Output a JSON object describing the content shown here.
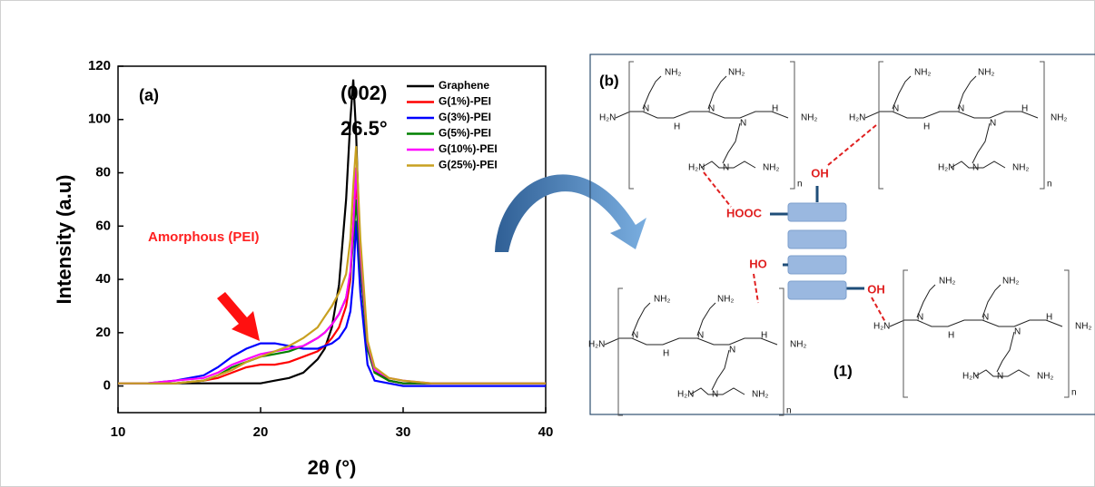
{
  "chart_data": {
    "type": "line",
    "panel_label": "(a)",
    "peak_label": "(002)",
    "peak_position": "26.5°",
    "annotation": "Amorphous (PEI)",
    "xlabel": "2θ (°)",
    "ylabel": "Intensity (a.u)",
    "xlim": [
      10,
      40
    ],
    "xticks": [
      10,
      20,
      30,
      40
    ],
    "ylim": [
      -10,
      120
    ],
    "yticks": [
      0,
      20,
      40,
      60,
      80,
      100,
      120
    ],
    "legend": "upper right",
    "x": [
      10,
      12,
      14,
      16,
      17,
      18,
      19,
      20,
      21,
      22,
      23,
      24,
      24.5,
      25,
      25.5,
      26,
      26.3,
      26.5,
      26.7,
      27,
      27.5,
      28,
      29,
      30,
      32,
      35,
      40
    ],
    "series": [
      {
        "name": "Graphene",
        "color": "#000000",
        "values": [
          1,
          1,
          1,
          1,
          1,
          1,
          1,
          1,
          2,
          3,
          5,
          10,
          14,
          22,
          38,
          70,
          100,
          115,
          95,
          45,
          15,
          6,
          2,
          1,
          1,
          1,
          1
        ]
      },
      {
        "name": "G(1%)-PEI",
        "color": "#ff0000",
        "values": [
          1,
          1,
          1,
          2,
          3,
          5,
          7,
          8,
          8,
          9,
          11,
          13,
          15,
          18,
          22,
          30,
          40,
          60,
          78,
          45,
          14,
          5,
          2,
          1,
          1,
          1,
          1
        ]
      },
      {
        "name": "G(3%)-PEI",
        "color": "#0000ff",
        "values": [
          1,
          1,
          2,
          4,
          7,
          11,
          14,
          16,
          16,
          15,
          14,
          14,
          15,
          16,
          18,
          22,
          28,
          40,
          62,
          35,
          8,
          2,
          1,
          0,
          0,
          0,
          0
        ]
      },
      {
        "name": "G(5%)-PEI",
        "color": "#008000",
        "values": [
          1,
          1,
          1,
          2,
          4,
          7,
          9,
          11,
          12,
          13,
          15,
          18,
          20,
          23,
          27,
          33,
          42,
          55,
          70,
          45,
          14,
          5,
          2,
          1,
          1,
          1,
          1
        ]
      },
      {
        "name": "G(10%)-PEI",
        "color": "#ff00ff",
        "values": [
          1,
          1,
          2,
          3,
          5,
          8,
          10,
          12,
          13,
          14,
          15,
          18,
          20,
          23,
          27,
          33,
          43,
          60,
          82,
          50,
          16,
          6,
          3,
          2,
          1,
          1,
          1
        ]
      },
      {
        "name": "G(25%)-PEI",
        "color": "#c8a020",
        "values": [
          1,
          1,
          1,
          2,
          4,
          6,
          9,
          11,
          13,
          15,
          18,
          22,
          26,
          30,
          35,
          42,
          55,
          75,
          90,
          55,
          17,
          7,
          3,
          2,
          1,
          1,
          1
        ]
      }
    ]
  },
  "diagram": {
    "panel_label": "(b)",
    "compound_label": "(1)",
    "groups": [
      "HOOC",
      "OH",
      "HO",
      "OH"
    ],
    "structures": [
      {
        "labels": [
          "H₂N",
          "N",
          "H",
          "N",
          "N",
          "H",
          "NH₂",
          "NH₂",
          "NH₂",
          "H₂N",
          "N",
          "NH₂",
          "n"
        ]
      },
      {
        "labels": [
          "H₂N",
          "N",
          "H",
          "N",
          "N",
          "H",
          "NH₂",
          "NH₂",
          "NH₂",
          "H₂N",
          "N",
          "NH₂",
          "n"
        ]
      },
      {
        "labels": [
          "H₂N",
          "N",
          "H",
          "N",
          "N",
          "H",
          "NH₂",
          "NH₂",
          "NH₂",
          "H₂N",
          "N",
          "NH₂",
          "n"
        ]
      },
      {
        "labels": [
          "H₂N",
          "N",
          "H",
          "N",
          "N",
          "H",
          "NH₂",
          "NH₂",
          "NH₂",
          "H₂N",
          "N",
          "NH₂",
          "n"
        ]
      }
    ]
  }
}
